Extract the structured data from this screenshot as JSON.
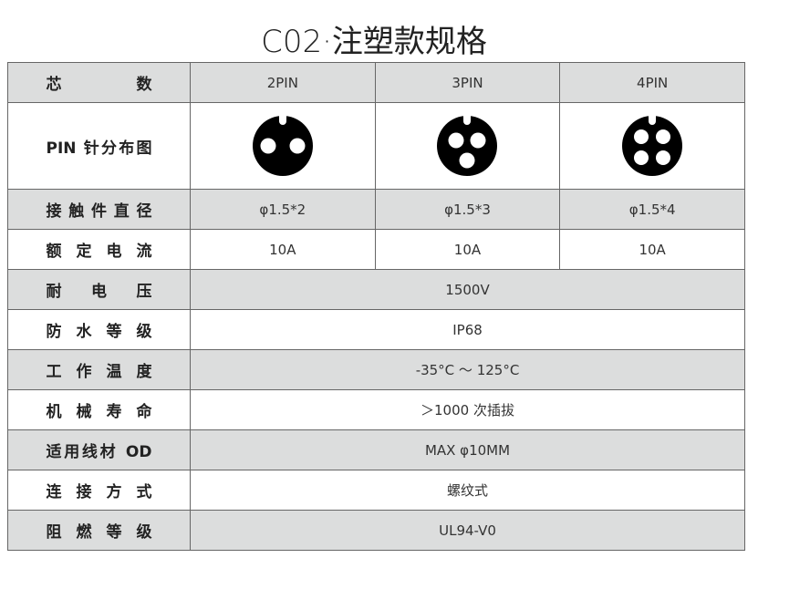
{
  "title": "C02·注塑款规格",
  "header": {
    "label": "芯　　数",
    "cols": [
      "2PIN",
      "3PIN",
      "4PIN"
    ]
  },
  "pin_row": {
    "label": "PIN 针分布图",
    "icons": [
      "2pin-layout-icon",
      "3pin-layout-icon",
      "4pin-layout-icon"
    ]
  },
  "rows3": [
    {
      "label": "接触件直径",
      "values": [
        "φ1.5*2",
        "φ1.5*3",
        "φ1.5*4"
      ]
    },
    {
      "label": "额定电流",
      "values": [
        "10A",
        "10A",
        "10A"
      ]
    }
  ],
  "rows1": [
    {
      "label": "耐　电　压",
      "value": "1500V"
    },
    {
      "label": "防水等级",
      "value": "IP68"
    },
    {
      "label": "工作温度",
      "value": "-35°C ～ 125°C"
    },
    {
      "label": "机械寿命",
      "value": "＞1000 次插拔"
    },
    {
      "label": "适用线材 OD",
      "value": "MAX φ10MM"
    },
    {
      "label": "连接方式",
      "value": "螺纹式"
    },
    {
      "label": "阻燃等级",
      "value": "UL94-V0"
    }
  ],
  "colors": {
    "row_gray": "#dcdddd",
    "border": "#666666"
  }
}
